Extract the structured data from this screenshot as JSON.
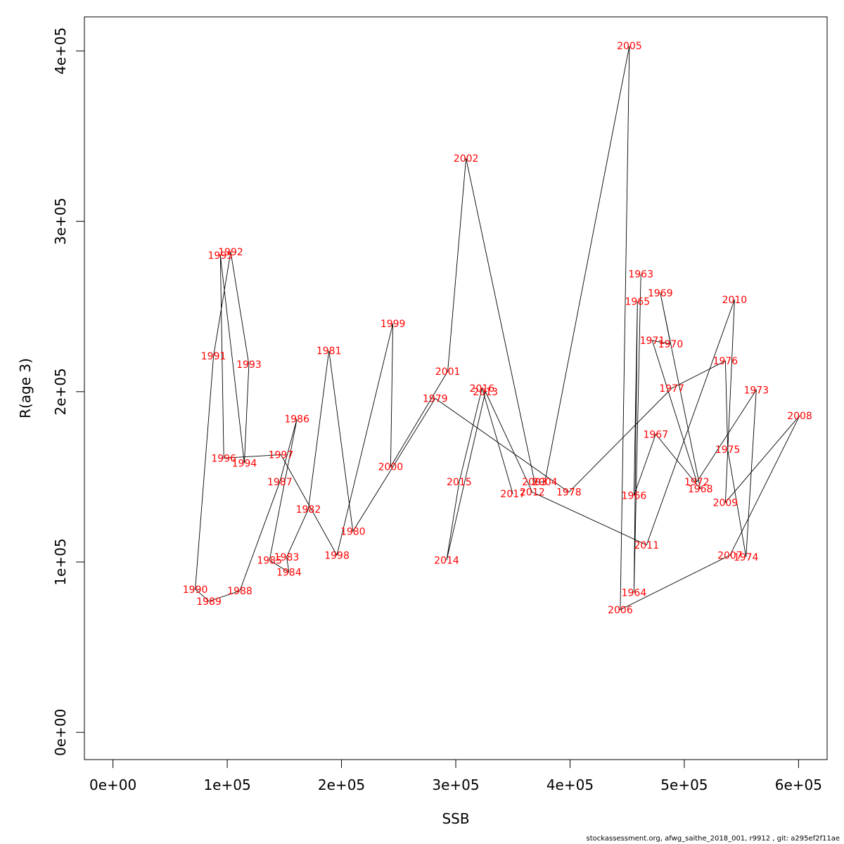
{
  "chart_data": {
    "type": "line",
    "xlabel": "SSB",
    "ylabel": "R(age 3)",
    "xlim": [
      -25000,
      625000
    ],
    "ylim": [
      -16000,
      420000
    ],
    "xticks": [
      {
        "v": 0,
        "label": "0e+00"
      },
      {
        "v": 100000,
        "label": "1e+05"
      },
      {
        "v": 200000,
        "label": "2e+05"
      },
      {
        "v": 300000,
        "label": "3e+05"
      },
      {
        "v": 400000,
        "label": "4e+05"
      },
      {
        "v": 500000,
        "label": "5e+05"
      },
      {
        "v": 600000,
        "label": "6e+05"
      }
    ],
    "yticks": [
      {
        "v": 0,
        "label": "0e+00"
      },
      {
        "v": 100000,
        "label": "1e+05"
      },
      {
        "v": 200000,
        "label": "2e+05"
      },
      {
        "v": 300000,
        "label": "3e+05"
      },
      {
        "v": 400000,
        "label": "4e+05"
      }
    ],
    "points": [
      {
        "year": "1963",
        "x": 462000,
        "y": 269000
      },
      {
        "year": "1964",
        "x": 456000,
        "y": 82000
      },
      {
        "year": "1965",
        "x": 459000,
        "y": 253000
      },
      {
        "year": "1966",
        "x": 456000,
        "y": 139000
      },
      {
        "year": "1967",
        "x": 475000,
        "y": 175000
      },
      {
        "year": "1968",
        "x": 514000,
        "y": 143000
      },
      {
        "year": "1969",
        "x": 479000,
        "y": 258000
      },
      {
        "year": "1970",
        "x": 488000,
        "y": 228000
      },
      {
        "year": "1971",
        "x": 472000,
        "y": 230000
      },
      {
        "year": "1972",
        "x": 511000,
        "y": 147000
      },
      {
        "year": "1973",
        "x": 563000,
        "y": 201000
      },
      {
        "year": "1974",
        "x": 554000,
        "y": 103000
      },
      {
        "year": "1975",
        "x": 538000,
        "y": 166000
      },
      {
        "year": "1976",
        "x": 536000,
        "y": 218000
      },
      {
        "year": "1977",
        "x": 489000,
        "y": 202000
      },
      {
        "year": "1978",
        "x": 399000,
        "y": 141000
      },
      {
        "year": "1979",
        "x": 282000,
        "y": 196000
      },
      {
        "year": "1980",
        "x": 210000,
        "y": 118000
      },
      {
        "year": "1981",
        "x": 189000,
        "y": 224000
      },
      {
        "year": "1982",
        "x": 171000,
        "y": 131000
      },
      {
        "year": "1983",
        "x": 152000,
        "y": 103000
      },
      {
        "year": "1984",
        "x": 154000,
        "y": 94000
      },
      {
        "year": "1985",
        "x": 137000,
        "y": 101000
      },
      {
        "year": "1986",
        "x": 161000,
        "y": 184000
      },
      {
        "year": "1987",
        "x": 146000,
        "y": 147000
      },
      {
        "year": "1988",
        "x": 111000,
        "y": 83000
      },
      {
        "year": "1989",
        "x": 84000,
        "y": 77000
      },
      {
        "year": "1990",
        "x": 72000,
        "y": 84000
      },
      {
        "year": "1991",
        "x": 88000,
        "y": 221000
      },
      {
        "year": "1992",
        "x": 103000,
        "y": 282000
      },
      {
        "year": "1993",
        "x": 119000,
        "y": 216000
      },
      {
        "year": "1994",
        "x": 115000,
        "y": 158000
      },
      {
        "year": "1995",
        "x": 94000,
        "y": 280000
      },
      {
        "year": "1996",
        "x": 97000,
        "y": 161000
      },
      {
        "year": "1997",
        "x": 147000,
        "y": 163000
      },
      {
        "year": "1998",
        "x": 196000,
        "y": 104000
      },
      {
        "year": "1999",
        "x": 245000,
        "y": 240000
      },
      {
        "year": "2000",
        "x": 243000,
        "y": 156000
      },
      {
        "year": "2001",
        "x": 293000,
        "y": 212000
      },
      {
        "year": "2002",
        "x": 309000,
        "y": 337000
      },
      {
        "year": "2003",
        "x": 369000,
        "y": 147000
      },
      {
        "year": "2004",
        "x": 378000,
        "y": 147000
      },
      {
        "year": "2005",
        "x": 452000,
        "y": 403000
      },
      {
        "year": "2006",
        "x": 444000,
        "y": 72000
      },
      {
        "year": "2007",
        "x": 540000,
        "y": 104000
      },
      {
        "year": "2008",
        "x": 601000,
        "y": 186000
      },
      {
        "year": "2009",
        "x": 536000,
        "y": 135000
      },
      {
        "year": "2010",
        "x": 544000,
        "y": 254000
      },
      {
        "year": "2011",
        "x": 467000,
        "y": 110000
      },
      {
        "year": "2012",
        "x": 367000,
        "y": 141000
      },
      {
        "year": "2013",
        "x": 326000,
        "y": 200000
      },
      {
        "year": "2014",
        "x": 292000,
        "y": 101000
      },
      {
        "year": "2015",
        "x": 303000,
        "y": 147000
      },
      {
        "year": "2016",
        "x": 323000,
        "y": 202000
      },
      {
        "year": "2017",
        "x": 350000,
        "y": 140000
      }
    ]
  },
  "footer": "stockassessment.org, afwg_saithe_2018_001, r9912 , git: a295ef2f11ae"
}
